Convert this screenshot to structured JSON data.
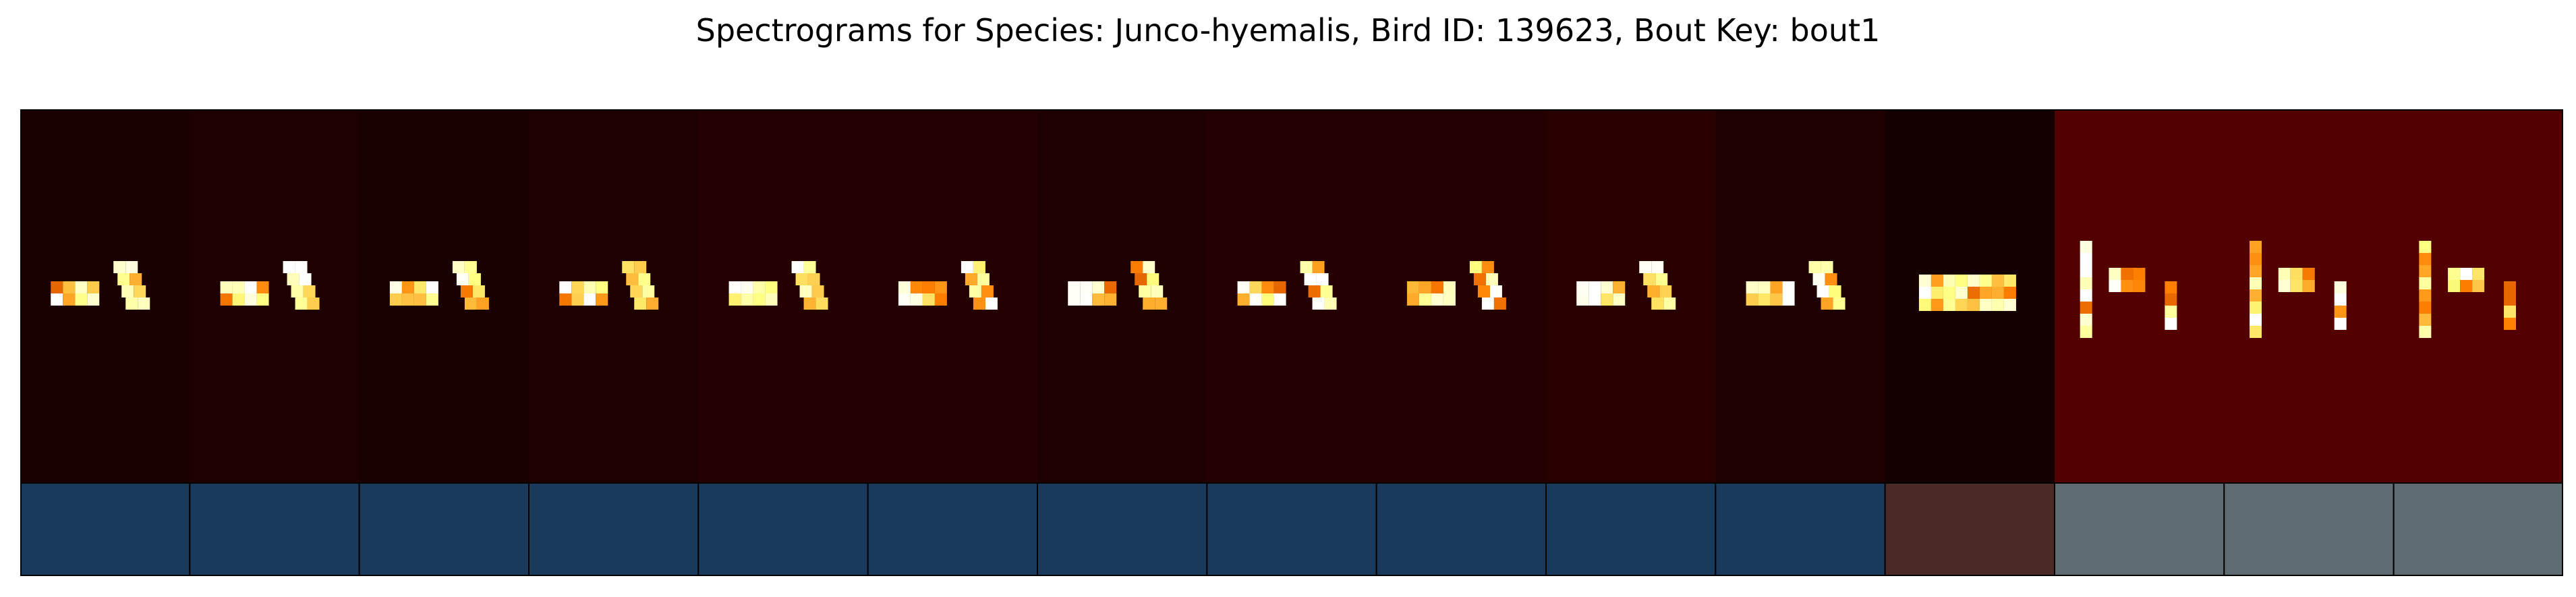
{
  "chart_data": {
    "type": "heatmap",
    "title": "Spectrograms for Species: Junco-hyemalis, Bird ID: 139623, Bout Key: bout1",
    "colormap": "afmhot",
    "panel_count": 15,
    "panel_background_level": [
      0.05,
      0.06,
      0.05,
      0.06,
      0.07,
      0.07,
      0.06,
      0.07,
      0.07,
      0.08,
      0.06,
      0.04,
      0.16,
      0.16,
      0.16
    ],
    "segment_labels": [
      0,
      0,
      0,
      0,
      0,
      0,
      0,
      0,
      0,
      0,
      0,
      1,
      2,
      2,
      2
    ],
    "label_colors": [
      "#1a3a5c",
      "#4a2a26",
      "#5e6b70"
    ],
    "frame_color": "#000000"
  }
}
